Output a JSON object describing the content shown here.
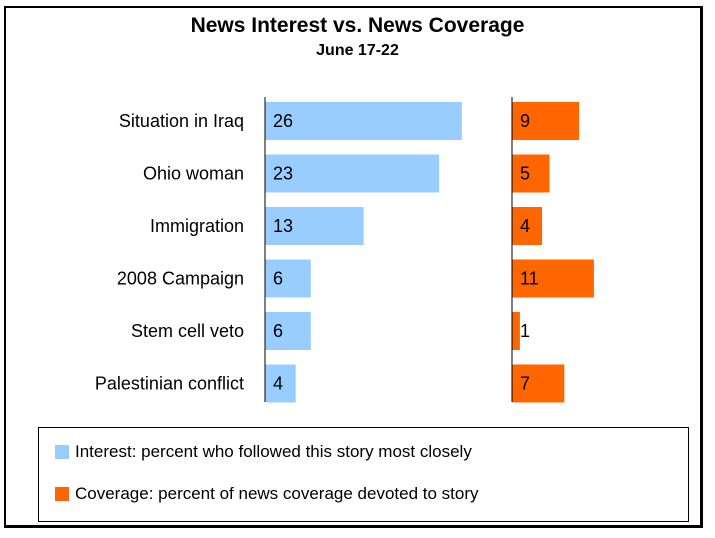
{
  "chart_data": {
    "type": "bar",
    "title": "News Interest vs. News Coverage",
    "subtitle": "June 17-22",
    "categories": [
      "Situation in Iraq",
      "Ohio woman",
      "Immigration",
      "2008 Campaign",
      "Stem cell veto",
      "Palestinian conflict"
    ],
    "series": [
      {
        "name": "Interest: percent who followed this story most closely",
        "values": [
          26,
          23,
          13,
          6,
          6,
          4
        ],
        "color": "#99ccff"
      },
      {
        "name": "Coverage: percent of news coverage devoted to story",
        "values": [
          9,
          5,
          4,
          11,
          1,
          7
        ],
        "color": "#ff6600"
      }
    ],
    "grid": false,
    "legend_position": "bottom"
  }
}
